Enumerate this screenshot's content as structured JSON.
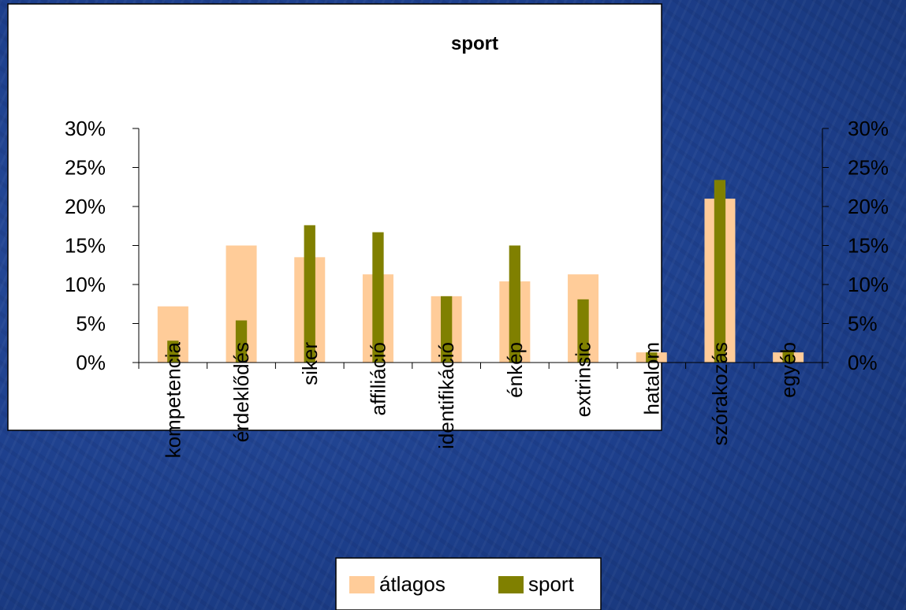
{
  "chart_data": {
    "type": "bar",
    "title": "sport",
    "categories": [
      "kompetencia",
      "érdeklődés",
      "siker",
      "affiliáció",
      "identifikáció",
      "énkép",
      "extrinsic",
      "hatalom",
      "szórakozás",
      "egyéb"
    ],
    "series": [
      {
        "name": "átlagos",
        "color": "#ffcc99",
        "values": [
          7.2,
          15.0,
          13.5,
          11.3,
          8.5,
          10.4,
          11.3,
          1.3,
          21.0,
          1.3
        ]
      },
      {
        "name": "sport",
        "color": "#808000",
        "values": [
          2.8,
          5.4,
          17.6,
          16.7,
          8.5,
          15.0,
          8.1,
          1.3,
          23.4,
          1.6
        ]
      }
    ],
    "ylim": [
      0,
      30
    ],
    "yticks": [
      "0%",
      "5%",
      "10%",
      "15%",
      "20%",
      "25%",
      "30%"
    ],
    "grid": false,
    "legend": "bottom"
  }
}
